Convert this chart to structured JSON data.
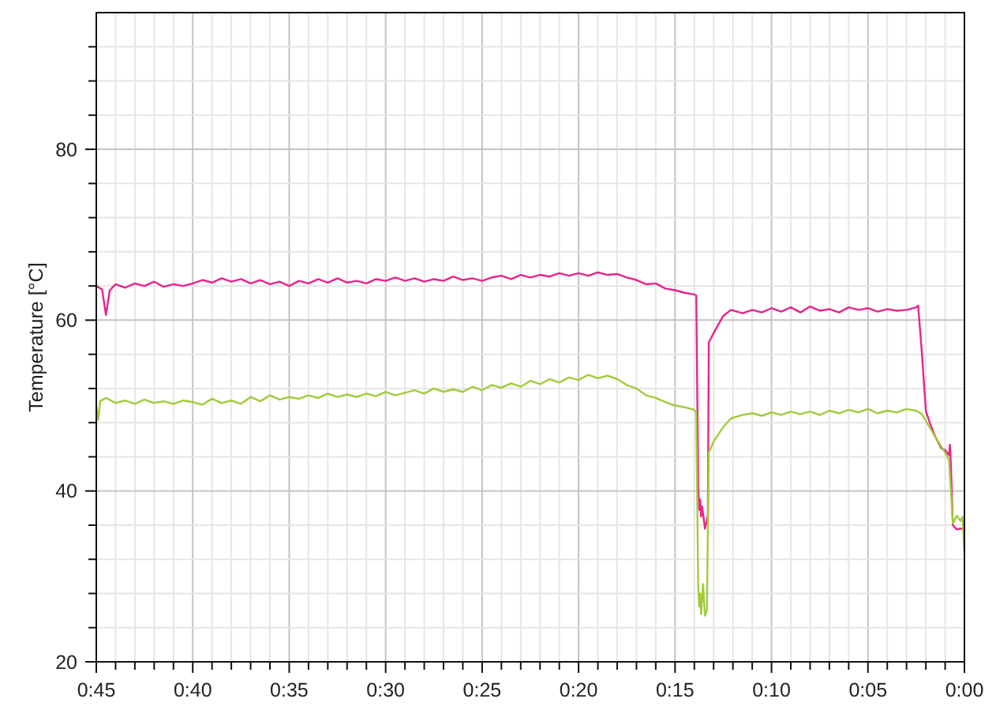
{
  "chart_data": {
    "type": "line",
    "ylabel": "Temperature [°C]",
    "xlim": [
      45,
      0
    ],
    "ylim": [
      20,
      96
    ],
    "xticks": [
      {
        "value": 45,
        "label": "0:45"
      },
      {
        "value": 44,
        "label": null
      },
      {
        "value": 43,
        "label": null
      },
      {
        "value": 42,
        "label": null
      },
      {
        "value": 41,
        "label": null
      },
      {
        "value": 40,
        "label": "0:40"
      },
      {
        "value": 39,
        "label": null
      },
      {
        "value": 38,
        "label": null
      },
      {
        "value": 37,
        "label": null
      },
      {
        "value": 36,
        "label": null
      },
      {
        "value": 35,
        "label": "0:35"
      },
      {
        "value": 34,
        "label": null
      },
      {
        "value": 33,
        "label": null
      },
      {
        "value": 32,
        "label": null
      },
      {
        "value": 31,
        "label": null
      },
      {
        "value": 30,
        "label": "0:30"
      },
      {
        "value": 29,
        "label": null
      },
      {
        "value": 28,
        "label": null
      },
      {
        "value": 27,
        "label": null
      },
      {
        "value": 26,
        "label": null
      },
      {
        "value": 25,
        "label": "0:25"
      },
      {
        "value": 24,
        "label": null
      },
      {
        "value": 23,
        "label": null
      },
      {
        "value": 22,
        "label": null
      },
      {
        "value": 21,
        "label": null
      },
      {
        "value": 20,
        "label": "0:20"
      },
      {
        "value": 19,
        "label": null
      },
      {
        "value": 18,
        "label": null
      },
      {
        "value": 17,
        "label": null
      },
      {
        "value": 16,
        "label": null
      },
      {
        "value": 15,
        "label": "0:15"
      },
      {
        "value": 14,
        "label": null
      },
      {
        "value": 13,
        "label": null
      },
      {
        "value": 12,
        "label": null
      },
      {
        "value": 11,
        "label": null
      },
      {
        "value": 10,
        "label": "0:10"
      },
      {
        "value": 9,
        "label": null
      },
      {
        "value": 8,
        "label": null
      },
      {
        "value": 7,
        "label": null
      },
      {
        "value": 6,
        "label": null
      },
      {
        "value": 5,
        "label": "0:05"
      },
      {
        "value": 4,
        "label": null
      },
      {
        "value": 3,
        "label": null
      },
      {
        "value": 2,
        "label": null
      },
      {
        "value": 1,
        "label": null
      },
      {
        "value": 0,
        "label": "0:00"
      }
    ],
    "yticks": [
      20,
      {
        "value": 24,
        "label": null
      },
      {
        "value": 28,
        "label": null
      },
      {
        "value": 32,
        "label": null
      },
      {
        "value": 36,
        "label": null
      },
      40,
      {
        "value": 44,
        "label": null
      },
      {
        "value": 48,
        "label": null
      },
      {
        "value": 52,
        "label": null
      },
      {
        "value": 56,
        "label": null
      },
      60,
      {
        "value": 64,
        "label": null
      },
      {
        "value": 68,
        "label": null
      },
      {
        "value": 72,
        "label": null
      },
      {
        "value": 76,
        "label": null
      },
      80,
      {
        "value": 84,
        "label": null
      },
      {
        "value": 88,
        "label": null
      },
      {
        "value": 92,
        "label": null
      }
    ],
    "grid": true,
    "series": [
      {
        "color": "#e8248c",
        "x": [
          45,
          44.7,
          44.5,
          44.3,
          44,
          43.5,
          43,
          42.5,
          42,
          41.5,
          41,
          40.5,
          40,
          39.5,
          39,
          38.5,
          38,
          37.5,
          37,
          36.5,
          36,
          35.5,
          35,
          34.5,
          34,
          33.5,
          33,
          32.5,
          32,
          31.5,
          31,
          30.5,
          30,
          29.5,
          29,
          28.5,
          28,
          27.5,
          27,
          26.5,
          26,
          25.5,
          25,
          24.5,
          24,
          23.5,
          23,
          22.5,
          22,
          21.5,
          21,
          20.5,
          20,
          19.5,
          19,
          18.5,
          18,
          17.5,
          17,
          16.5,
          16,
          15.5,
          15,
          14.5,
          14,
          13.9,
          13.8,
          13.75,
          13.7,
          13.65,
          13.6,
          13.5,
          13.45,
          13.3,
          13.25,
          13,
          12.5,
          12.1,
          11.5,
          11,
          10.5,
          10,
          9.5,
          9,
          8.5,
          8,
          7.5,
          7,
          6.5,
          6,
          5.5,
          5,
          4.5,
          4,
          3.5,
          3,
          2.5,
          2.4,
          2.2,
          2,
          1.8,
          1.5,
          1.2,
          1,
          0.8,
          0.75,
          0.7,
          0.6,
          0.4,
          0.2,
          0
        ],
        "values": [
          64,
          63.6,
          60.6,
          63.5,
          64.2,
          63.8,
          64.3,
          64,
          64.5,
          63.9,
          64.2,
          64,
          64.3,
          64.7,
          64.4,
          64.9,
          64.5,
          64.8,
          64.3,
          64.7,
          64.2,
          64.5,
          64,
          64.6,
          64.3,
          64.8,
          64.4,
          64.9,
          64.4,
          64.6,
          64.3,
          64.8,
          64.6,
          65,
          64.6,
          64.9,
          64.5,
          64.8,
          64.6,
          65.1,
          64.7,
          64.9,
          64.6,
          65,
          65.2,
          64.8,
          65.3,
          65,
          65.3,
          65.1,
          65.5,
          65.2,
          65.5,
          65.2,
          65.6,
          65.3,
          65.4,
          65,
          64.7,
          64.2,
          64.3,
          63.7,
          63.5,
          63.2,
          63,
          62.9,
          40.5,
          37.8,
          39,
          37,
          38.2,
          36.5,
          35.6,
          37,
          57.4,
          58.5,
          60.5,
          61.2,
          60.8,
          61.2,
          60.9,
          61.4,
          61,
          61.5,
          60.9,
          61.6,
          61.1,
          61.3,
          60.9,
          61.5,
          61.2,
          61.4,
          61,
          61.3,
          61.1,
          61.2,
          61.5,
          61.7,
          56,
          49.4,
          48,
          46.3,
          45,
          44.8,
          44.2,
          45.4,
          43,
          36,
          35.5,
          35.6,
          35.5
        ]
      },
      {
        "color": "#a2cb3a",
        "x": [
          45,
          44.9,
          44.8,
          44.5,
          44,
          43.5,
          43,
          42.5,
          42,
          41.5,
          41,
          40.5,
          40,
          39.5,
          39,
          38.5,
          38,
          37.5,
          37,
          36.5,
          36,
          35.5,
          35,
          34.5,
          34,
          33.5,
          33,
          32.5,
          32,
          31.5,
          31,
          30.5,
          30,
          29.5,
          29,
          28.5,
          28,
          27.5,
          27,
          26.5,
          26,
          25.5,
          25,
          24.5,
          24,
          23.5,
          23,
          22.5,
          22,
          21.5,
          21,
          20.5,
          20,
          19.5,
          19,
          18.5,
          18,
          17.5,
          17,
          16.5,
          16,
          15.5,
          15,
          14.5,
          14,
          13.9,
          13.8,
          13.75,
          13.7,
          13.65,
          13.55,
          13.45,
          13.35,
          13.25,
          13,
          12.5,
          12.1,
          11.5,
          11,
          10.5,
          10,
          9.5,
          9,
          8.5,
          8,
          7.5,
          7,
          6.5,
          6,
          5.5,
          5,
          4.5,
          4,
          3.5,
          3,
          2.5,
          2.2,
          2,
          1.5,
          1,
          0.8,
          0.7,
          0.6,
          0.4,
          0.2,
          0.1,
          0
        ],
        "values": [
          50,
          48.3,
          50.5,
          50.9,
          50.3,
          50.6,
          50.2,
          50.7,
          50.3,
          50.5,
          50.2,
          50.6,
          50.4,
          50.1,
          50.8,
          50.3,
          50.6,
          50.2,
          51,
          50.5,
          51.2,
          50.7,
          51,
          50.8,
          51.2,
          50.9,
          51.4,
          51,
          51.3,
          51,
          51.4,
          51.1,
          51.6,
          51.2,
          51.5,
          51.8,
          51.4,
          52,
          51.6,
          51.9,
          51.6,
          52.2,
          51.8,
          52.4,
          52.1,
          52.6,
          52.2,
          52.9,
          52.5,
          53.1,
          52.7,
          53.3,
          53,
          53.6,
          53.2,
          53.5,
          53.1,
          52.4,
          52,
          51.2,
          50.9,
          50.4,
          50,
          49.8,
          49.5,
          49.2,
          29,
          26.5,
          28,
          25.6,
          29.1,
          25.4,
          26,
          44.5,
          45.8,
          47.5,
          48.5,
          48.9,
          49.1,
          48.8,
          49.2,
          48.9,
          49.3,
          49,
          49.3,
          48.9,
          49.4,
          49.1,
          49.5,
          49.2,
          49.6,
          49.1,
          49.4,
          49.2,
          49.6,
          49.4,
          49,
          48.2,
          46.3,
          44.5,
          43.6,
          40,
          36.2,
          37.1,
          36.5,
          37,
          32.8
        ]
      }
    ]
  }
}
